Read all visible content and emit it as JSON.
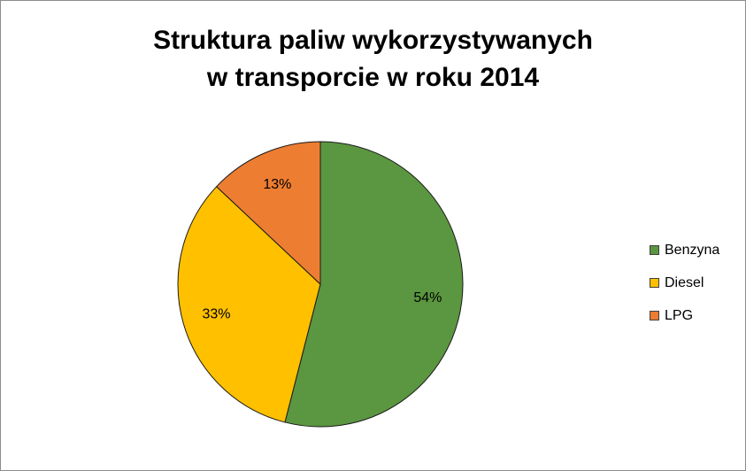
{
  "chart_data": {
    "type": "pie",
    "title_lines": [
      "Struktura paliw wykorzystywanych",
      "w transporcie w roku 2014"
    ],
    "categories": [
      "Benzyna",
      "Diesel",
      "LPG"
    ],
    "values": [
      54,
      33,
      13
    ],
    "labels": [
      "54%",
      "33%",
      "13%"
    ],
    "colors": [
      "#5b9640",
      "#ffc000",
      "#ed7d31"
    ],
    "legend_position": "right"
  }
}
